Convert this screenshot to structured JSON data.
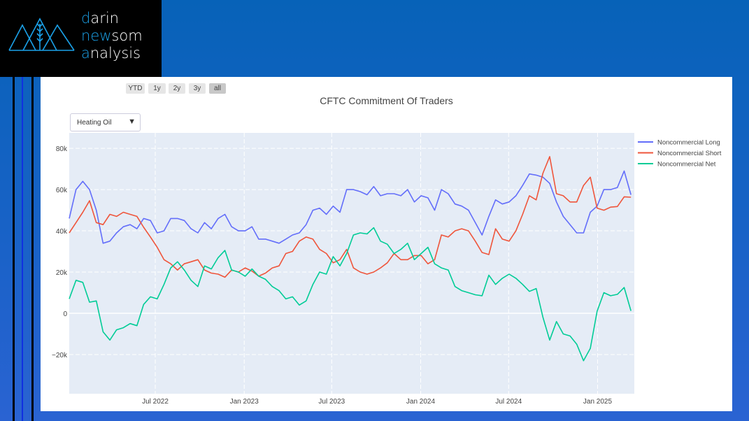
{
  "logo": {
    "line1_accent": "d",
    "line1_rest": "arin",
    "line2_accent": "n",
    "line2_mid": "ew",
    "line2_rest": "som",
    "line3_accent": "a",
    "line3_rest": "nalysis"
  },
  "range_buttons": [
    {
      "label": "YTD"
    },
    {
      "label": "1y"
    },
    {
      "label": "2y"
    },
    {
      "label": "3y"
    },
    {
      "label": "all",
      "active": true
    }
  ],
  "dropdown": {
    "selected": "Heating Oil",
    "arrow": "▼"
  },
  "colors": {
    "long": "#636efa",
    "short": "#ef553b",
    "net": "#00cc96",
    "plot_bg": "#e5ecf6"
  },
  "chart_data": {
    "type": "line",
    "title": "CFTC Commitment Of Traders",
    "xlabel": "",
    "ylabel": "",
    "x_start": "2022-01-04",
    "x_step_days": 14,
    "x_range": [
      "2022-01-04",
      "2025-03-18"
    ],
    "ylim": [
      -39000,
      87500
    ],
    "y_ticks": [
      {
        "value": -20000,
        "label": "−20k"
      },
      {
        "value": 0,
        "label": "0"
      },
      {
        "value": 20000,
        "label": "20k"
      },
      {
        "value": 40000,
        "label": "40k"
      },
      {
        "value": 60000,
        "label": "60k"
      },
      {
        "value": 80000,
        "label": "80k"
      }
    ],
    "x_ticks": [
      {
        "date": "2022-07-01",
        "label": "Jul 2022"
      },
      {
        "date": "2023-01-01",
        "label": "Jan 2023"
      },
      {
        "date": "2023-07-01",
        "label": "Jul 2023"
      },
      {
        "date": "2024-01-01",
        "label": "Jan 2024"
      },
      {
        "date": "2024-07-01",
        "label": "Jul 2024"
      },
      {
        "date": "2025-01-01",
        "label": "Jan 2025"
      }
    ],
    "grid": true,
    "legend_position": "right",
    "series": [
      {
        "name": "Noncommercial Long",
        "color": "#636efa",
        "values": [
          46000,
          60000,
          64000,
          60000,
          50000,
          34000,
          35000,
          39000,
          42000,
          43000,
          41000,
          46000,
          45000,
          39000,
          40000,
          46000,
          46000,
          45000,
          41000,
          39000,
          44000,
          41000,
          46000,
          48000,
          42000,
          40000,
          40000,
          42000,
          36000,
          36000,
          35000,
          34000,
          36000,
          38000,
          39000,
          43000,
          50000,
          51000,
          48000,
          52000,
          49000,
          60000,
          60000,
          59000,
          57500,
          61500,
          57000,
          58000,
          58000,
          57000,
          60000,
          54000,
          57000,
          56000,
          50000,
          60000,
          58000,
          53000,
          52000,
          50000,
          44000,
          38000,
          47000,
          55000,
          53000,
          54000,
          57000,
          62000,
          67600,
          67000,
          66000,
          63000,
          54000,
          47000,
          43000,
          39000,
          39000,
          49000,
          52000,
          60000,
          60000,
          61000,
          69000,
          57500
        ]
      },
      {
        "name": "Noncommercial Short",
        "color": "#ef553b",
        "values": [
          39000,
          44000,
          49000,
          54600,
          44000,
          43000,
          48000,
          47000,
          49000,
          48000,
          47000,
          41700,
          37000,
          32000,
          26000,
          24000,
          21000,
          24000,
          25000,
          26000,
          21000,
          19500,
          19000,
          17500,
          21000,
          20000,
          22000,
          20500,
          18000,
          19500,
          22000,
          23000,
          29000,
          30000,
          35000,
          37000,
          36000,
          31000,
          29000,
          24500,
          26000,
          31000,
          22000,
          20000,
          19000,
          20000,
          22000,
          24500,
          29000,
          26000,
          26000,
          28000,
          28000,
          24000,
          26000,
          38000,
          37000,
          40000,
          41000,
          40000,
          35000,
          29500,
          28500,
          41000,
          36000,
          35000,
          40000,
          48000,
          57000,
          55000,
          68000,
          76000,
          58000,
          57000,
          54000,
          54000,
          62000,
          66000,
          51000,
          50000,
          51500,
          51800,
          56500,
          56300
        ]
      },
      {
        "name": "Noncommercial Net",
        "color": "#00cc96",
        "values": [
          7000,
          16000,
          15000,
          5400,
          6000,
          -9000,
          -13000,
          -8000,
          -7000,
          -5000,
          -6000,
          4300,
          8000,
          7000,
          14000,
          22000,
          25000,
          21000,
          16000,
          13000,
          23000,
          21500,
          27000,
          30500,
          21000,
          20000,
          18000,
          21500,
          18000,
          16500,
          13000,
          11000,
          7000,
          8000,
          4000,
          6000,
          14000,
          20000,
          19000,
          27500,
          23000,
          29000,
          38000,
          39000,
          38500,
          41500,
          35000,
          33500,
          29000,
          31000,
          34000,
          26000,
          29000,
          32000,
          24000,
          22000,
          21000,
          13000,
          11000,
          10000,
          9000,
          8500,
          18500,
          14000,
          17000,
          19000,
          17000,
          14000,
          10600,
          12000,
          -2000,
          -13000,
          -4000,
          -10000,
          -11000,
          -15000,
          -23000,
          -17000,
          1000,
          10000,
          8500,
          9200,
          12500,
          1200
        ]
      }
    ]
  }
}
